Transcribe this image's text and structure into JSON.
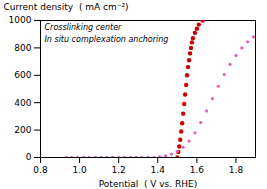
{
  "chart_data": {
    "type": "scatter",
    "xlabel": "Potential  ( V vs. RHE)",
    "ylabel": "Current density  ( mA cm⁻²)",
    "xlim": [
      0.8,
      1.9
    ],
    "ylim": [
      0,
      1000
    ],
    "xticks": [
      0.8,
      {
        "value": 1.0,
        "label": "1.0"
      },
      1.2,
      1.4,
      1.6,
      1.8
    ],
    "yticks": [
      0,
      200,
      400,
      600,
      800,
      1000
    ],
    "grid": false,
    "series": [
      {
        "color": "#cc0000",
        "x": [
          1.5,
          1.505,
          1.51,
          1.515,
          1.52,
          1.525,
          1.53,
          1.535,
          1.54,
          1.545,
          1.55,
          1.555,
          1.56,
          1.565,
          1.57,
          1.575,
          1.58,
          1.59,
          1.6,
          1.61,
          1.63
        ],
        "values": [
          0,
          40,
          80,
          130,
          190,
          250,
          320,
          390,
          460,
          530,
          600,
          660,
          710,
          760,
          800,
          840,
          870,
          910,
          940,
          970,
          1000
        ]
      },
      {
        "color": "#e060b8",
        "x": [
          0.93,
          0.96,
          0.99,
          1.02,
          1.05,
          1.08,
          1.11,
          1.14,
          1.17,
          1.2,
          1.23,
          1.26,
          1.29,
          1.32,
          1.35,
          1.38,
          1.41,
          1.44,
          1.47,
          1.5,
          1.53,
          1.56,
          1.59,
          1.62,
          1.65,
          1.68,
          1.71,
          1.74,
          1.77,
          1.8,
          1.83,
          1.86,
          1.89
        ],
        "values": [
          0,
          0,
          0,
          0,
          0,
          0,
          0,
          0,
          0,
          0,
          0,
          0,
          0,
          0,
          0,
          0,
          5,
          12,
          25,
          45,
          75,
          120,
          180,
          255,
          340,
          430,
          520,
          605,
          680,
          745,
          800,
          845,
          880
        ]
      }
    ],
    "annotations": [
      "Crosslinking center",
      "In situ complexation anchoring"
    ]
  }
}
